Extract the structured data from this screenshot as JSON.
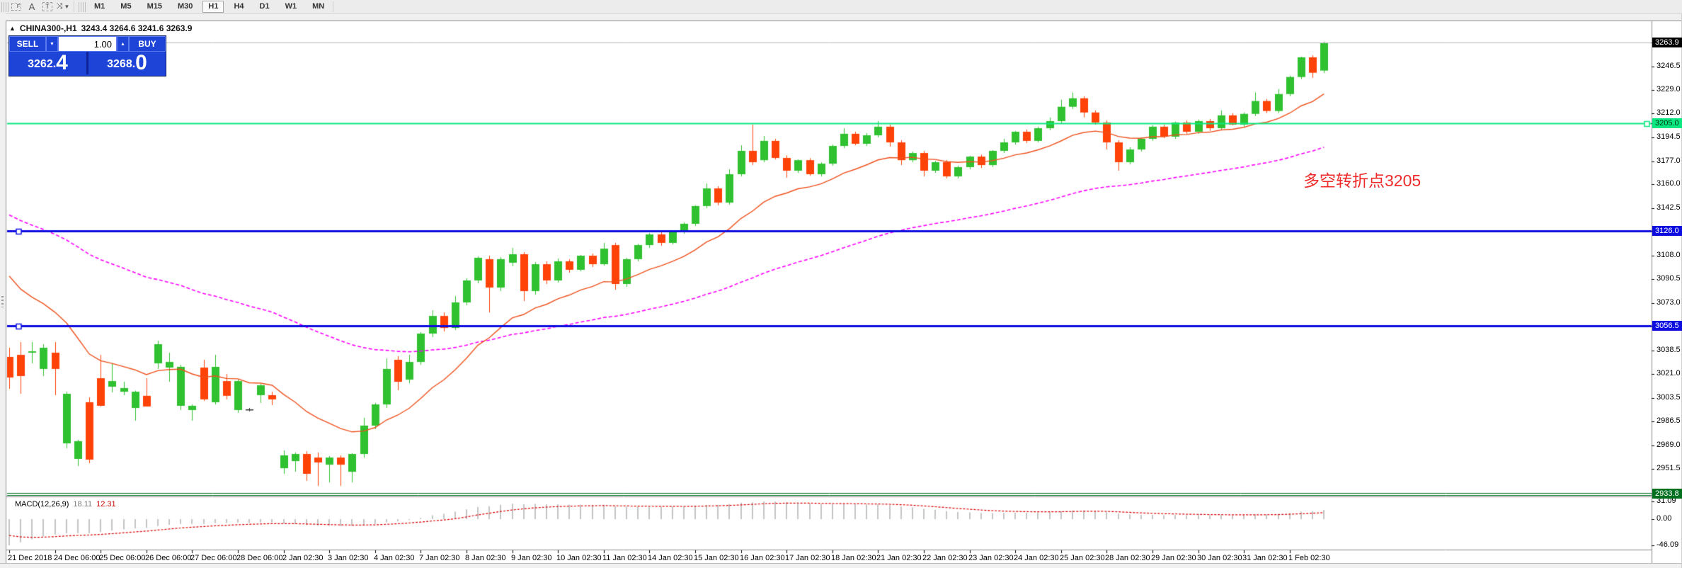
{
  "toolbar": {
    "icons": [
      {
        "name": "indicators-grid-icon",
        "glyph": "F"
      },
      {
        "name": "text-label-icon",
        "glyph": "A"
      },
      {
        "name": "text-box-icon",
        "glyph": "T"
      },
      {
        "name": "cursor-arrows-icon",
        "glyph": "⤨"
      }
    ],
    "timeframes": [
      "M1",
      "M5",
      "M15",
      "M30",
      "H1",
      "H4",
      "D1",
      "W1",
      "MN"
    ],
    "active_timeframe": "H1"
  },
  "chart": {
    "title_symbol": "CHINA300-,H1",
    "title_ohlc": "3243.4 3264.6 3241.6 3263.9",
    "collapse_arrow": "▲"
  },
  "trade_panel": {
    "sell_label": "SELL",
    "buy_label": "BUY",
    "volume": "1.00",
    "stepper_down": "▼",
    "stepper_up": "▲",
    "sell_price_small": "3262.",
    "sell_price_big": "4",
    "buy_price_small": "3268.",
    "buy_price_big": "0"
  },
  "annotation": {
    "text": "多空转折点3205",
    "color": "#ee2b2b"
  },
  "indicator_label": {
    "name": "MACD(12,26,9)",
    "value1": "18.11",
    "value2": "12.31"
  },
  "price_axis": {
    "labels": [
      {
        "text": "3263.9",
        "price": 3263.9,
        "type": "current",
        "bg": "#000000",
        "fg": "#ffffff"
      },
      {
        "text": "3246.5",
        "price": 3246.5,
        "type": "plain"
      },
      {
        "text": "3229.0",
        "price": 3229.0,
        "type": "plain"
      },
      {
        "text": "3212.0",
        "price": 3212.0,
        "type": "plain"
      },
      {
        "text": "3205.0",
        "price": 3205.0,
        "type": "box",
        "bg": "#0be881",
        "fg": "#003311"
      },
      {
        "text": "3194.5",
        "price": 3194.5,
        "type": "plain"
      },
      {
        "text": "3177.0",
        "price": 3177.0,
        "type": "plain"
      },
      {
        "text": "3160.0",
        "price": 3160.0,
        "type": "plain"
      },
      {
        "text": "3142.5",
        "price": 3142.5,
        "type": "plain"
      },
      {
        "text": "3126.0",
        "price": 3126.0,
        "type": "box",
        "bg": "#0d0de0",
        "fg": "#ffffff"
      },
      {
        "text": "3108.0",
        "price": 3108.0,
        "type": "plain"
      },
      {
        "text": "3090.5",
        "price": 3090.5,
        "type": "plain"
      },
      {
        "text": "3073.0",
        "price": 3073.0,
        "type": "plain"
      },
      {
        "text": "3056.5",
        "price": 3056.5,
        "type": "box",
        "bg": "#0d0de0",
        "fg": "#ffffff"
      },
      {
        "text": "3038.5",
        "price": 3038.5,
        "type": "plain"
      },
      {
        "text": "3021.0",
        "price": 3021.0,
        "type": "plain"
      },
      {
        "text": "3003.5",
        "price": 3003.5,
        "type": "plain"
      },
      {
        "text": "2986.5",
        "price": 2986.5,
        "type": "plain"
      },
      {
        "text": "2969.0",
        "price": 2969.0,
        "type": "plain"
      },
      {
        "text": "2951.5",
        "price": 2951.5,
        "type": "plain"
      },
      {
        "text": "2933.8",
        "price": 2933.8,
        "type": "box",
        "bg": "#00701f",
        "fg": "#ffffff"
      }
    ]
  },
  "macd_axis": {
    "labels": [
      {
        "text": "31.09",
        "v": 31.09
      },
      {
        "text": "0.00",
        "v": 0.0
      },
      {
        "text": "-46.09",
        "v": -46.09
      }
    ]
  },
  "time_axis": {
    "labels": [
      "21 Dec 2018",
      "24 Dec 06:00",
      "25 Dec 06:00",
      "26 Dec 06:00",
      "27 Dec 06:00",
      "28 Dec 06:00",
      "2 Jan 02:30",
      "3 Jan 02:30",
      "4 Jan 02:30",
      "7 Jan 02:30",
      "8 Jan 02:30",
      "9 Jan 02:30",
      "10 Jan 02:30",
      "11 Jan 02:30",
      "14 Jan 02:30",
      "15 Jan 02:30",
      "16 Jan 02:30",
      "17 Jan 02:30",
      "18 Jan 02:30",
      "21 Jan 02:30",
      "22 Jan 02:30",
      "23 Jan 02:30",
      "24 Jan 02:30",
      "25 Jan 02:30",
      "28 Jan 02:30",
      "29 Jan 02:30",
      "30 Jan 02:30",
      "31 Jan 02:30",
      "1 Feb 02:30"
    ]
  },
  "chart_data": {
    "type": "candlestick",
    "symbol": "CHINA300-",
    "timeframe": "H1",
    "bars_per_day": 4,
    "last_bar_ohlc": {
      "open": 3243.4,
      "high": 3264.6,
      "low": 3241.6,
      "close": 3263.9
    },
    "current_price": 3263.9,
    "colors": {
      "up": "#2fc12f",
      "down": "#ff4208",
      "doji": "#333333",
      "ma_fast": "#f0521e",
      "ma_slow": "#ff00ff",
      "hist": "#c4c4c4",
      "signal": "#dd0000",
      "price_line": "#b8b8b8"
    },
    "hlines": [
      {
        "price": 3205.0,
        "color": "#0be881",
        "width": 2,
        "label": "3205.0",
        "handle": "right"
      },
      {
        "price": 3126.0,
        "color": "#0d0de0",
        "width": 3,
        "label": "3126.0",
        "handle": "left"
      },
      {
        "price": 3056.5,
        "color": "#0d0de0",
        "width": 3,
        "label": "3056.5",
        "handle": "left"
      },
      {
        "price": 2933.8,
        "color": "#00701f",
        "width": 1,
        "label": "2933.8",
        "style": "double"
      }
    ],
    "ma_fast": {
      "period": 6,
      "alpha": 0.13,
      "seed": 3104
    },
    "ma_slow": {
      "period": 40,
      "alpha": 0.035,
      "seed": 3142
    },
    "macd": {
      "fast": 12,
      "slow": 26,
      "signal": 9,
      "pane_max": 31.09,
      "pane_min": -46.09,
      "last_macd": 18.11,
      "last_signal": 12.31
    },
    "candles": [
      [
        3033.7,
        3040.4,
        3010.3,
        3018.6
      ],
      [
        3035.2,
        3044.6,
        3006.7,
        3019.7
      ],
      [
        3036.8,
        3044.6,
        3029.0,
        3037.8
      ],
      [
        3024.9,
        3043.0,
        3019.7,
        3040.4
      ],
      [
        3036.8,
        3044.6,
        3005.7,
        3024.9
      ],
      [
        2970.4,
        3008.2,
        2966.8,
        3006.7
      ],
      [
        2959.0,
        2973.0,
        2953.8,
        2972.0
      ],
      [
        3000.5,
        3004.1,
        2955.9,
        2958.5
      ],
      [
        3018.1,
        3035.2,
        2997.4,
        2997.9
      ],
      [
        3011.9,
        3029.0,
        3007.7,
        3016.0
      ],
      [
        3008.2,
        3015.5,
        3005.7,
        3010.9
      ],
      [
        2996.3,
        3009.0,
        2987.0,
        3008.2
      ],
      [
        3005.2,
        3018.1,
        2997.4,
        2997.4
      ],
      [
        3029.0,
        3045.6,
        3024.9,
        3043.0
      ],
      [
        3025.9,
        3036.8,
        3015.5,
        3030.0
      ],
      [
        2997.9,
        3027.9,
        2994.8,
        3026.4
      ],
      [
        2994.8,
        2998.9,
        2987.0,
        2997.9
      ],
      [
        3025.9,
        3031.6,
        3001.5,
        3002.6
      ],
      [
        3000.5,
        3035.2,
        2998.9,
        3026.4
      ],
      [
        3016.0,
        3021.2,
        3002.6,
        3005.2
      ],
      [
        2994.8,
        3017.1,
        2992.8,
        3016.0
      ],
      [
        2995.3,
        2996.3,
        2993.8,
        2995.3
      ],
      [
        3005.7,
        3013.9,
        3000.0,
        3012.9
      ],
      [
        3005.7,
        3008.2,
        2998.4,
        3002.6
      ],
      [
        2952.2,
        2965.2,
        2948.1,
        2961.6
      ],
      [
        2957.4,
        2963.7,
        2949.6,
        2962.6
      ],
      [
        2962.6,
        2964.7,
        2942.9,
        2948.1
      ],
      [
        2960.0,
        2963.7,
        2939.2,
        2956.4
      ],
      [
        2954.8,
        2961.1,
        2941.8,
        2960.0
      ],
      [
        2960.0,
        2961.6,
        2939.2,
        2954.8
      ],
      [
        2949.6,
        2963.2,
        2941.8,
        2962.6
      ],
      [
        2962.6,
        2989.1,
        2960.0,
        2983.4
      ],
      [
        2983.4,
        3000.0,
        2980.8,
        2998.9
      ],
      [
        2998.9,
        3032.6,
        2996.3,
        3024.9
      ],
      [
        3031.6,
        3034.2,
        3009.3,
        3015.5
      ],
      [
        3017.1,
        3035.2,
        3014.5,
        3030.0
      ],
      [
        3030.0,
        3051.8,
        3027.9,
        3050.8
      ],
      [
        3050.8,
        3067.9,
        3048.2,
        3063.7
      ],
      [
        3063.7,
        3066.3,
        3052.3,
        3054.9
      ],
      [
        3054.9,
        3078.2,
        3053.4,
        3073.6
      ],
      [
        3073.6,
        3091.3,
        3071.5,
        3089.7
      ],
      [
        3089.7,
        3107.3,
        3087.6,
        3106.3
      ],
      [
        3105.3,
        3107.8,
        3066.3,
        3084.5
      ],
      [
        3084.5,
        3106.8,
        3081.9,
        3105.3
      ],
      [
        3102.7,
        3113.5,
        3100.1,
        3108.9
      ],
      [
        3108.9,
        3110.4,
        3074.6,
        3081.9
      ],
      [
        3081.9,
        3103.2,
        3079.3,
        3101.6
      ],
      [
        3101.6,
        3103.7,
        3087.1,
        3089.7
      ],
      [
        3089.7,
        3105.8,
        3088.1,
        3103.7
      ],
      [
        3103.7,
        3105.3,
        3095.4,
        3097.5
      ],
      [
        3097.5,
        3108.4,
        3096.4,
        3107.8
      ],
      [
        3107.8,
        3109.4,
        3099.5,
        3101.6
      ],
      [
        3101.6,
        3117.2,
        3100.6,
        3113.0
      ],
      [
        3115.6,
        3117.2,
        3082.9,
        3087.1
      ],
      [
        3087.1,
        3106.3,
        3085.0,
        3105.3
      ],
      [
        3105.3,
        3116.6,
        3103.7,
        3115.6
      ],
      [
        3115.6,
        3124.4,
        3113.5,
        3123.4
      ],
      [
        3123.4,
        3124.9,
        3115.1,
        3117.2
      ],
      [
        3117.2,
        3126.5,
        3116.1,
        3126.0
      ],
      [
        3126.0,
        3132.2,
        3123.9,
        3131.2
      ],
      [
        3131.2,
        3144.7,
        3129.6,
        3144.2
      ],
      [
        3144.2,
        3160.7,
        3142.6,
        3157.1
      ],
      [
        3157.1,
        3158.7,
        3144.7,
        3146.7
      ],
      [
        3146.7,
        3171.1,
        3145.2,
        3167.5
      ],
      [
        3167.5,
        3188.7,
        3165.9,
        3184.6
      ],
      [
        3184.6,
        3203.8,
        3174.2,
        3176.3
      ],
      [
        3177.8,
        3195.5,
        3176.3,
        3191.9
      ],
      [
        3191.9,
        3193.4,
        3178.3,
        3179.4
      ],
      [
        3179.4,
        3181.4,
        3164.9,
        3170.1
      ],
      [
        3170.1,
        3178.3,
        3168.5,
        3177.8
      ],
      [
        3177.8,
        3179.3,
        3166.4,
        3167.5
      ],
      [
        3167.5,
        3176.2,
        3165.9,
        3175.2
      ],
      [
        3175.2,
        3189.2,
        3173.7,
        3188.2
      ],
      [
        3188.2,
        3201.2,
        3186.6,
        3197.1
      ],
      [
        3197.1,
        3198.6,
        3188.7,
        3189.8
      ],
      [
        3189.8,
        3197.6,
        3188.2,
        3196.0
      ],
      [
        3196.0,
        3206.4,
        3194.5,
        3202.3
      ],
      [
        3202.3,
        3203.8,
        3187.7,
        3190.8
      ],
      [
        3190.8,
        3192.4,
        3174.2,
        3177.8
      ],
      [
        3177.8,
        3184.1,
        3176.3,
        3183.0
      ],
      [
        3183.0,
        3184.6,
        3165.9,
        3170.1
      ],
      [
        3170.1,
        3177.3,
        3168.5,
        3176.3
      ],
      [
        3176.3,
        3177.8,
        3164.4,
        3165.9
      ],
      [
        3165.9,
        3173.7,
        3164.4,
        3172.7
      ],
      [
        3172.7,
        3181.0,
        3171.1,
        3180.4
      ],
      [
        3180.4,
        3181.9,
        3172.1,
        3174.2
      ],
      [
        3174.2,
        3185.1,
        3172.7,
        3184.6
      ],
      [
        3184.6,
        3193.4,
        3183.0,
        3190.8
      ],
      [
        3190.8,
        3199.2,
        3189.2,
        3198.6
      ],
      [
        3198.6,
        3200.2,
        3190.3,
        3191.9
      ],
      [
        3191.9,
        3202.3,
        3190.8,
        3201.2
      ],
      [
        3201.2,
        3209.1,
        3199.7,
        3206.4
      ],
      [
        3206.4,
        3222.1,
        3204.9,
        3216.9
      ],
      [
        3216.9,
        3227.3,
        3215.3,
        3223.1
      ],
      [
        3223.1,
        3224.6,
        3209.1,
        3212.7
      ],
      [
        3212.7,
        3214.3,
        3203.8,
        3205.4
      ],
      [
        3205.4,
        3206.9,
        3185.6,
        3190.8
      ],
      [
        3190.8,
        3192.4,
        3170.1,
        3176.3
      ],
      [
        3176.3,
        3187.2,
        3174.7,
        3185.6
      ],
      [
        3185.6,
        3194.5,
        3184.1,
        3193.4
      ],
      [
        3193.4,
        3203.3,
        3191.9,
        3202.3
      ],
      [
        3202.3,
        3203.8,
        3193.9,
        3195.0
      ],
      [
        3195.0,
        3206.0,
        3193.4,
        3205.4
      ],
      [
        3205.4,
        3206.9,
        3197.1,
        3198.6
      ],
      [
        3198.6,
        3207.5,
        3197.1,
        3206.4
      ],
      [
        3206.4,
        3208.0,
        3199.2,
        3201.2
      ],
      [
        3201.2,
        3214.3,
        3199.7,
        3210.6
      ],
      [
        3210.6,
        3212.2,
        3203.3,
        3203.8
      ],
      [
        3203.8,
        3212.7,
        3202.3,
        3211.7
      ],
      [
        3211.7,
        3227.3,
        3210.1,
        3221.1
      ],
      [
        3221.1,
        3222.6,
        3212.2,
        3213.8
      ],
      [
        3213.8,
        3229.9,
        3212.2,
        3226.2
      ],
      [
        3226.2,
        3239.7,
        3224.6,
        3238.7
      ],
      [
        3238.7,
        3253.6,
        3237.1,
        3253.1
      ],
      [
        3253.1,
        3254.6,
        3238.1,
        3241.8
      ],
      [
        3243.4,
        3264.6,
        3241.6,
        3263.9
      ]
    ]
  }
}
